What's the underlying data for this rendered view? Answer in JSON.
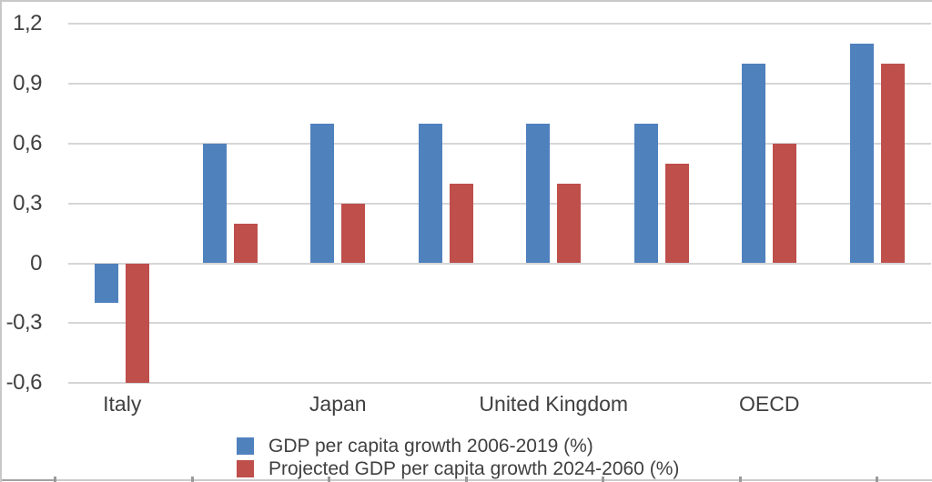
{
  "chart_data": {
    "type": "bar",
    "title": "",
    "xlabel": "",
    "ylabel": "",
    "categories": [
      "Italy",
      "",
      "Japan",
      "",
      "United Kingdom",
      "",
      "OECD",
      ""
    ],
    "visible_category_labels": [
      "Italy",
      "Japan",
      "United Kingdom",
      "OECD"
    ],
    "series": [
      {
        "key": "gdp-2006-2019",
        "name": "GDP per capita growth 2006-2019 (%)",
        "color": "#4F81BD",
        "values": [
          -0.2,
          0.6,
          0.7,
          0.7,
          0.7,
          0.7,
          1.0,
          1.1
        ]
      },
      {
        "key": "projected-2024-2060",
        "name": "Projected GDP per capita growth 2024-2060 (%)",
        "color": "#BE4F4B",
        "values": [
          -0.6,
          0.2,
          0.3,
          0.4,
          0.4,
          0.5,
          0.6,
          1.0
        ]
      }
    ],
    "y_axis": {
      "tick_labels": [
        "1,2",
        "0,9",
        "0,6",
        "0,3",
        "0",
        "-0,3",
        "-0,6"
      ],
      "tick_values": [
        1.2,
        0.9,
        0.6,
        0.3,
        0,
        -0.3,
        -0.6
      ],
      "ylim": [
        -0.6,
        1.2
      ],
      "decimal_separator": ","
    },
    "grid": true,
    "legend_position": "bottom-center"
  },
  "colors": {
    "series1": "#4F81BD",
    "series2": "#BE4F4B",
    "gridline": "#D6D6D6",
    "text": "#404040",
    "frame_border": "#C8C8C8"
  }
}
